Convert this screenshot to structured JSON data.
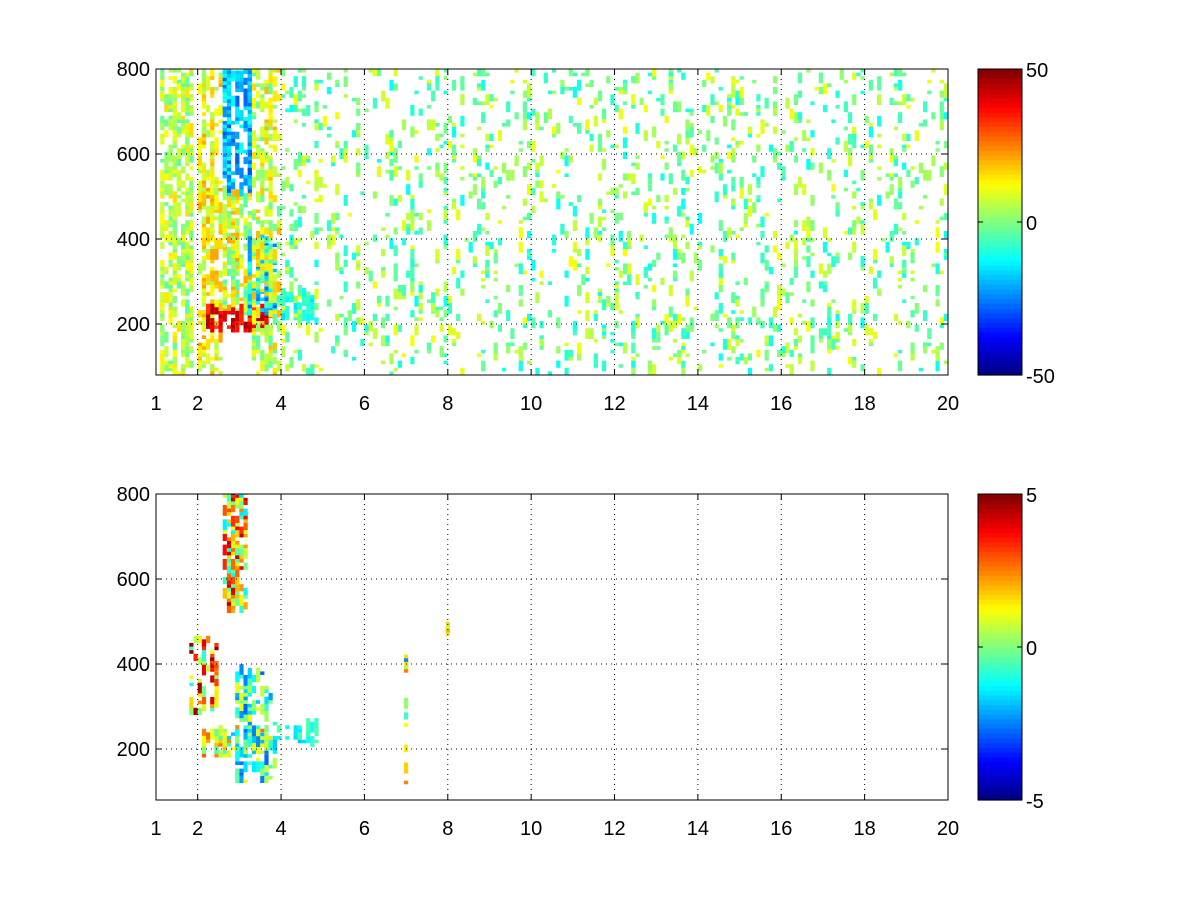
{
  "figure": {
    "background": "#ffffff"
  },
  "chart_data": [
    {
      "type": "heatmap",
      "title": "",
      "xlabel": "",
      "ylabel": "",
      "xlim": [
        1,
        20
      ],
      "ylim": [
        80,
        800
      ],
      "x_ticks": [
        1,
        2,
        4,
        6,
        8,
        10,
        12,
        14,
        16,
        18,
        20
      ],
      "x_tick_labels": [
        "1",
        "2",
        "4",
        "6",
        "8",
        "10",
        "12",
        "14",
        "16",
        "18",
        "20"
      ],
      "y_ticks": [
        200,
        400,
        600,
        800
      ],
      "y_tick_labels": [
        "200",
        "400",
        "600",
        "800"
      ],
      "grid": true,
      "grid_style": "dotted",
      "colormap": "jet",
      "clim": [
        -50,
        50
      ],
      "colorbar_ticks": [
        -50,
        0,
        50
      ],
      "colorbar_tick_labels": [
        "-50",
        "0",
        "50"
      ],
      "colorbar_position": "right",
      "data_regions": [
        {
          "x": [
            1.1,
            1.9
          ],
          "y": [
            80,
            800
          ],
          "value": 6,
          "spread": 10,
          "density": 0.55
        },
        {
          "x": [
            2.0,
            2.6
          ],
          "y": [
            80,
            800
          ],
          "value": 12,
          "spread": 10,
          "density": 0.65
        },
        {
          "x": [
            2.6,
            3.3
          ],
          "y": [
            500,
            800
          ],
          "value": -20,
          "spread": 10,
          "density": 0.85
        },
        {
          "x": [
            2.6,
            3.3
          ],
          "y": [
            220,
            500
          ],
          "value": 8,
          "spread": 14,
          "density": 0.7
        },
        {
          "x": [
            2.2,
            3.8
          ],
          "y": [
            180,
            225
          ],
          "value": 38,
          "spread": 8,
          "density": 0.8
        },
        {
          "x": [
            3.2,
            3.9
          ],
          "y": [
            220,
            400
          ],
          "value": -18,
          "spread": 12,
          "density": 0.6
        },
        {
          "x": [
            3.3,
            4.0
          ],
          "y": [
            80,
            800
          ],
          "value": 8,
          "spread": 12,
          "density": 0.45
        },
        {
          "x": [
            3.9,
            4.7
          ],
          "y": [
            200,
            260
          ],
          "value": -10,
          "spread": 6,
          "density": 0.6
        },
        {
          "x": [
            4.0,
            20.0
          ],
          "y": [
            80,
            800
          ],
          "value": 0,
          "spread": 12,
          "density": 0.14
        }
      ]
    },
    {
      "type": "heatmap",
      "title": "",
      "xlabel": "",
      "ylabel": "",
      "xlim": [
        1,
        20
      ],
      "ylim": [
        80,
        800
      ],
      "x_ticks": [
        1,
        2,
        4,
        6,
        8,
        10,
        12,
        14,
        16,
        18,
        20
      ],
      "x_tick_labels": [
        "1",
        "2",
        "4",
        "6",
        "8",
        "10",
        "12",
        "14",
        "16",
        "18",
        "20"
      ],
      "y_ticks": [
        200,
        400,
        600,
        800
      ],
      "y_tick_labels": [
        "200",
        "400",
        "600",
        "800"
      ],
      "grid": true,
      "grid_style": "dotted",
      "colormap": "jet",
      "clim": [
        -5,
        5
      ],
      "colorbar_ticks": [
        -5,
        0,
        5
      ],
      "colorbar_tick_labels": [
        "-5",
        "0",
        "5"
      ],
      "colorbar_position": "right",
      "data_regions": [
        {
          "x": [
            1.8,
            2.5
          ],
          "y": [
            280,
            450
          ],
          "value": 2,
          "spread": 3,
          "density": 0.35
        },
        {
          "x": [
            2.6,
            3.2
          ],
          "y": [
            520,
            800
          ],
          "value": 1.5,
          "spread": 3,
          "density": 0.55
        },
        {
          "x": [
            2.1,
            3.9
          ],
          "y": [
            180,
            240
          ],
          "value": 0.5,
          "spread": 2.5,
          "density": 0.6
        },
        {
          "x": [
            2.9,
            3.9
          ],
          "y": [
            120,
            380
          ],
          "value": -0.8,
          "spread": 2,
          "density": 0.45
        },
        {
          "x": [
            3.9,
            4.8
          ],
          "y": [
            205,
            255
          ],
          "value": -1,
          "spread": 0.8,
          "density": 0.5
        },
        {
          "x": [
            6.95,
            7.05
          ],
          "y": [
            100,
            470
          ],
          "value": 0,
          "spread": 2.5,
          "density": 0.7
        },
        {
          "x": [
            7.95,
            8.05
          ],
          "y": [
            440,
            500
          ],
          "value": 1.5,
          "spread": 0.8,
          "density": 0.9
        }
      ]
    }
  ]
}
